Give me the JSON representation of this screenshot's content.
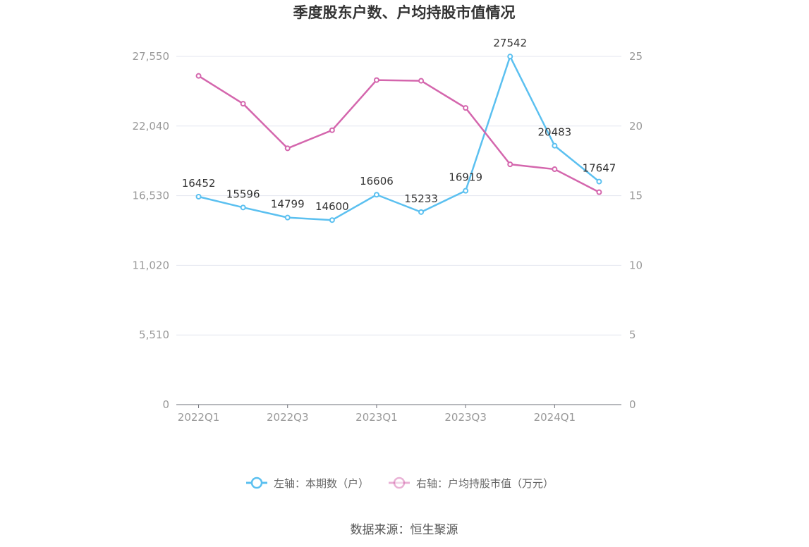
{
  "chart_data": {
    "type": "line",
    "title": "季度股东户数、户均持股市值情况",
    "x": [
      "2022Q1",
      "2022Q2",
      "2022Q3",
      "2022Q4",
      "2023Q1",
      "2023Q2",
      "2023Q3",
      "2023Q4",
      "2024Q1",
      "2024Q2"
    ],
    "x_tick_labels": [
      "2022Q1",
      "2022Q3",
      "2023Q1",
      "2023Q3",
      "2024Q1"
    ],
    "y_left_ticks": [
      "0",
      "5,510",
      "11,020",
      "16,530",
      "22,040",
      "27,550"
    ],
    "y_right_ticks": [
      "0",
      "5",
      "10",
      "15",
      "20",
      "25"
    ],
    "ylim_left": [
      0,
      27550
    ],
    "ylim_right": [
      0,
      25
    ],
    "grid": true,
    "legend_position": "bottom",
    "series": [
      {
        "name": "左轴：本期数（户）",
        "axis": "left",
        "color": "#5bc0f0",
        "values": [
          16452,
          15596,
          14799,
          14600,
          16606,
          15233,
          16919,
          27542,
          20483,
          17647
        ],
        "labels": [
          "16452",
          "15596",
          "14799",
          "14600",
          "16606",
          "15233",
          "16919",
          "27542",
          "20483",
          "17647"
        ]
      },
      {
        "name": "右轴：户均持股市值（万元）",
        "axis": "right",
        "color": "#d466ad",
        "values": [
          23.6,
          21.6,
          18.4,
          19.7,
          23.3,
          23.25,
          21.3,
          17.25,
          16.9,
          15.25
        ]
      }
    ]
  },
  "footer": {
    "source": "数据来源：恒生聚源"
  }
}
